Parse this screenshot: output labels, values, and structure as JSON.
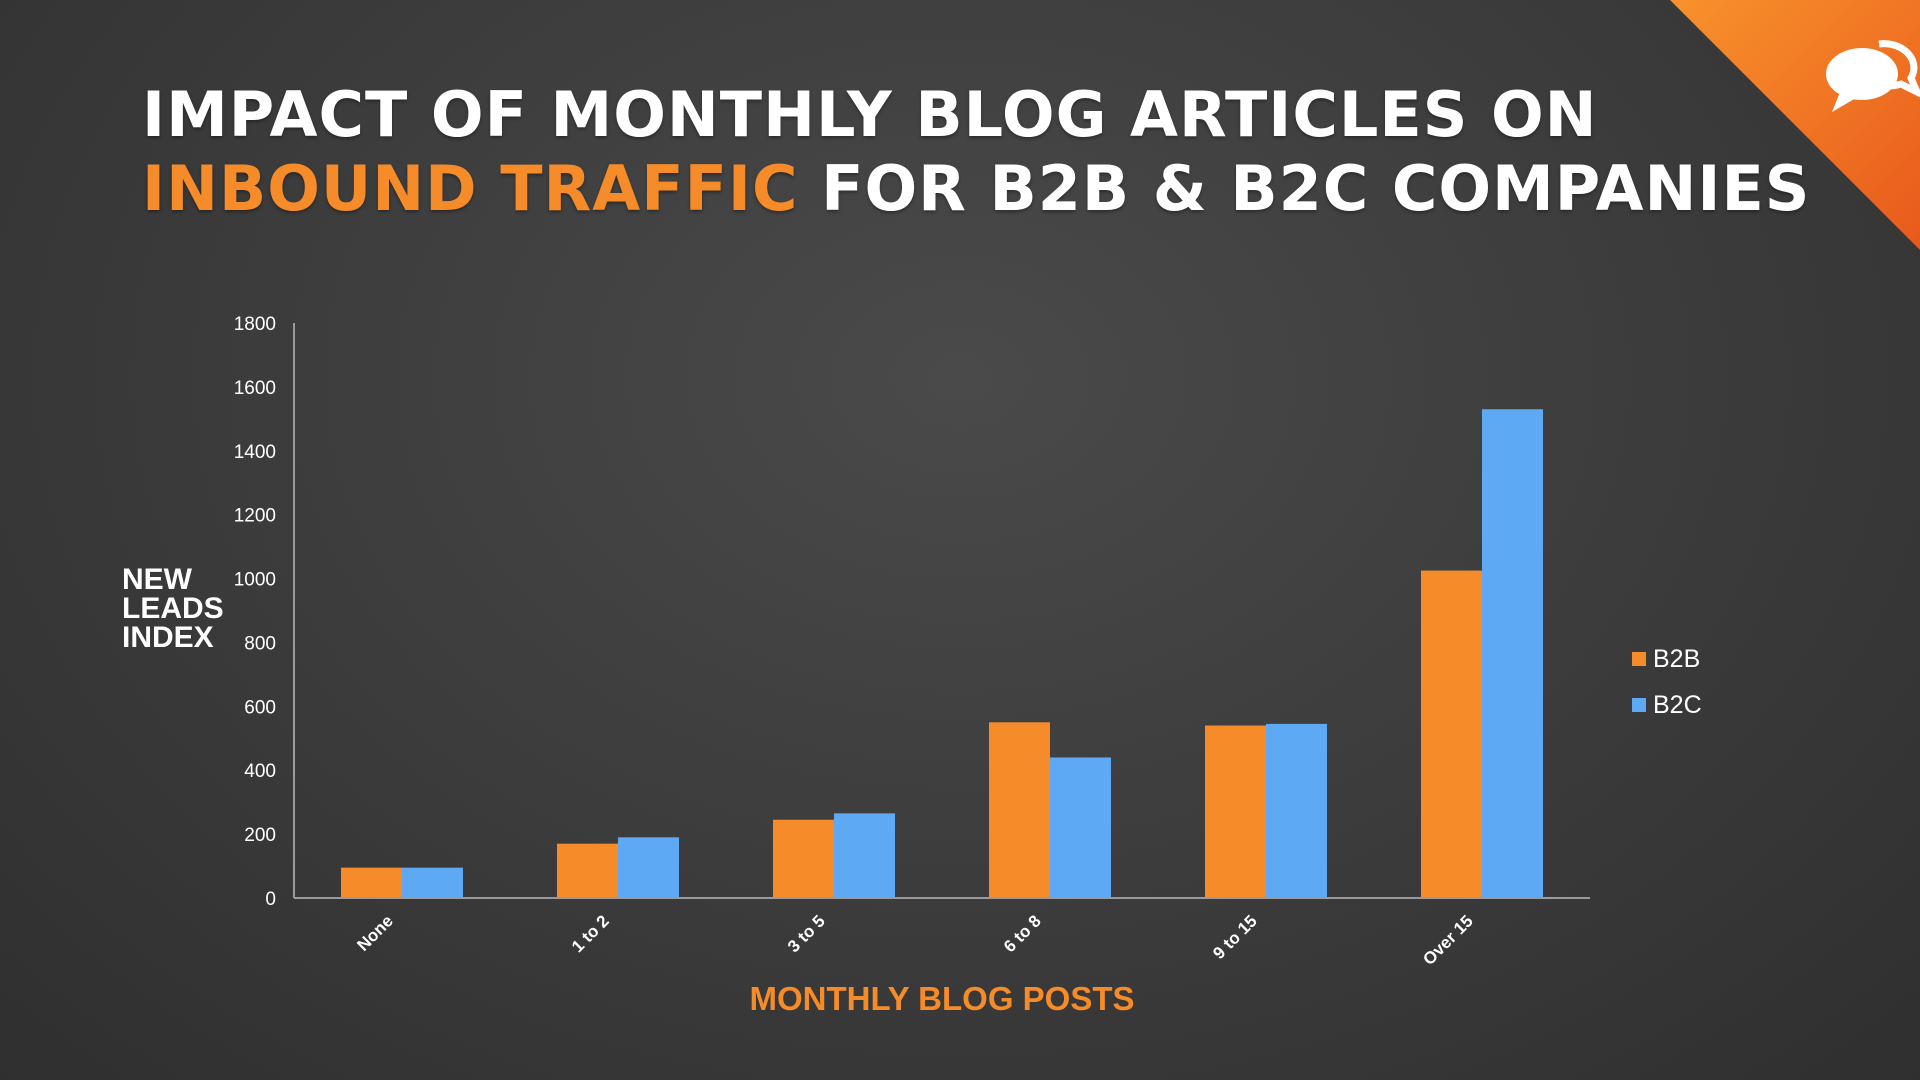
{
  "slide": {
    "title_line1": "IMPACT OF MONTHLY BLOG ARTICLES ON",
    "title_highlight": "INBOUND TRAFFIC",
    "title_line2_rest": " FOR B2B & B2C COMPANIES",
    "logo_icon": "speech-bubbles-icon"
  },
  "colors": {
    "accent": "#f68b2a",
    "b2b": "#f68b2a",
    "b2c": "#5ea9f4",
    "text": "#ffffff"
  },
  "chart_data": {
    "type": "bar",
    "categories": [
      "None",
      "1 to 2",
      "3 to 5",
      "6 to 8",
      "9 to 15",
      "Over 15"
    ],
    "series": [
      {
        "name": "B2B",
        "values": [
          95,
          170,
          245,
          550,
          540,
          1025
        ]
      },
      {
        "name": "B2C",
        "values": [
          95,
          190,
          265,
          440,
          545,
          1530
        ]
      }
    ],
    "title": "",
    "xlabel": "MONTHLY BLOG POSTS",
    "ylabel": "NEW\nLEADS\nINDEX",
    "ylim": [
      0,
      1800
    ],
    "yticks": [
      "0",
      "200",
      "400",
      "600",
      "800",
      "1000",
      "1200",
      "1400",
      "1600",
      "1800"
    ],
    "grid": false,
    "legend_position": "right"
  }
}
